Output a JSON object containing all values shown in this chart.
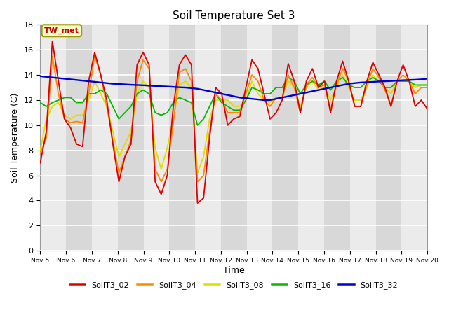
{
  "title": "Soil Temperature Set 3",
  "xlabel": "Time",
  "ylabel": "Soil Temperature (C)",
  "ylim": [
    0,
    18
  ],
  "yticks": [
    0,
    2,
    4,
    6,
    8,
    10,
    12,
    14,
    16,
    18
  ],
  "annotation_text": "TW_met",
  "annotation_box_color": "#ffffcc",
  "annotation_border_color": "#999900",
  "annotation_text_color": "#cc0000",
  "series_colors": {
    "SoilT3_02": "#dd0000",
    "SoilT3_04": "#ff8800",
    "SoilT3_08": "#dddd00",
    "SoilT3_16": "#00bb00",
    "SoilT3_32": "#0000cc"
  },
  "x_tick_labels": [
    "Nov 5",
    "Nov 6",
    "Nov 7",
    "Nov 8",
    "Nov 9",
    "Nov 10",
    "Nov 11",
    "Nov 12",
    "Nov 13",
    "Nov 14",
    "Nov 15",
    "Nov 16",
    "Nov 17",
    "Nov 18",
    "Nov 19",
    "Nov 20"
  ],
  "plot_bg_light": "#ebebeb",
  "plot_bg_dark": "#d8d8d8",
  "SoilT3_02": [
    7.0,
    9.5,
    16.7,
    13.5,
    10.5,
    9.8,
    8.5,
    8.3,
    13.5,
    15.8,
    14.0,
    12.0,
    8.5,
    5.5,
    7.5,
    8.5,
    14.8,
    15.8,
    14.8,
    5.5,
    4.5,
    6.0,
    11.5,
    14.8,
    15.6,
    14.8,
    3.8,
    4.2,
    9.0,
    13.0,
    12.5,
    10.0,
    10.5,
    10.7,
    13.0,
    15.2,
    14.5,
    12.5,
    10.5,
    11.0,
    12.0,
    14.9,
    13.5,
    11.0,
    13.5,
    14.5,
    13.0,
    13.5,
    11.0,
    13.5,
    15.1,
    13.5,
    11.5,
    11.5,
    13.5,
    15.0,
    14.0,
    13.0,
    11.5,
    13.5,
    14.8,
    13.5,
    11.5,
    12.0,
    11.3
  ],
  "SoilT3_04": [
    7.8,
    9.0,
    15.5,
    12.5,
    10.5,
    10.2,
    10.3,
    10.2,
    12.5,
    15.5,
    14.0,
    11.5,
    8.8,
    6.2,
    7.5,
    8.8,
    13.5,
    15.2,
    14.5,
    6.5,
    5.5,
    6.5,
    10.2,
    14.2,
    14.5,
    13.5,
    5.5,
    6.0,
    9.5,
    12.5,
    12.0,
    11.0,
    11.0,
    11.0,
    12.5,
    14.0,
    13.5,
    12.0,
    11.5,
    12.2,
    12.2,
    14.0,
    13.0,
    11.0,
    13.2,
    13.8,
    13.0,
    13.2,
    11.2,
    13.2,
    14.5,
    13.5,
    11.5,
    11.5,
    13.2,
    14.5,
    13.8,
    12.8,
    11.5,
    13.5,
    14.0,
    13.5,
    12.5,
    13.0,
    13.0
  ],
  "SoilT3_08": [
    8.0,
    10.5,
    11.5,
    11.8,
    10.8,
    10.5,
    10.8,
    10.8,
    12.0,
    13.5,
    12.5,
    11.5,
    9.5,
    7.5,
    8.5,
    9.5,
    12.5,
    13.5,
    13.0,
    8.2,
    6.5,
    8.2,
    10.5,
    13.2,
    13.5,
    13.0,
    6.2,
    7.5,
    10.5,
    12.0,
    12.0,
    12.0,
    11.5,
    11.5,
    12.0,
    13.5,
    12.5,
    12.0,
    11.8,
    12.2,
    12.2,
    13.5,
    13.0,
    11.5,
    13.0,
    13.5,
    12.8,
    13.0,
    12.0,
    13.0,
    14.0,
    13.0,
    12.0,
    12.0,
    13.0,
    14.0,
    13.5,
    13.0,
    12.5,
    13.5,
    13.5,
    13.5,
    13.0,
    13.2,
    13.2
  ],
  "SoilT3_16": [
    11.8,
    11.5,
    11.8,
    12.0,
    12.2,
    12.2,
    11.8,
    11.8,
    12.5,
    12.5,
    12.8,
    12.5,
    11.5,
    10.5,
    11.0,
    11.5,
    12.5,
    12.8,
    12.5,
    11.0,
    10.8,
    11.0,
    11.8,
    12.2,
    12.0,
    11.8,
    10.0,
    10.5,
    11.5,
    12.5,
    11.8,
    11.5,
    11.2,
    11.2,
    12.0,
    13.0,
    12.8,
    12.5,
    12.5,
    13.0,
    13.0,
    13.8,
    13.5,
    12.5,
    13.2,
    13.5,
    13.2,
    13.5,
    12.8,
    13.5,
    13.8,
    13.2,
    13.0,
    13.0,
    13.5,
    13.8,
    13.5,
    13.0,
    13.0,
    13.5,
    13.5,
    13.5,
    13.2,
    13.2,
    13.2
  ],
  "SoilT3_32": [
    13.9,
    13.85,
    13.8,
    13.75,
    13.7,
    13.65,
    13.6,
    13.55,
    13.5,
    13.45,
    13.4,
    13.35,
    13.3,
    13.28,
    13.25,
    13.22,
    13.2,
    13.18,
    13.15,
    13.12,
    13.1,
    13.08,
    13.05,
    13.02,
    13.0,
    12.95,
    12.9,
    12.8,
    12.7,
    12.6,
    12.5,
    12.4,
    12.3,
    12.2,
    12.15,
    12.1,
    12.05,
    12.0,
    12.0,
    12.1,
    12.2,
    12.3,
    12.4,
    12.5,
    12.6,
    12.7,
    12.8,
    12.9,
    13.0,
    13.1,
    13.2,
    13.3,
    13.35,
    13.4,
    13.42,
    13.45,
    13.48,
    13.5,
    13.52,
    13.55,
    13.58,
    13.6,
    13.62,
    13.65,
    13.7
  ]
}
